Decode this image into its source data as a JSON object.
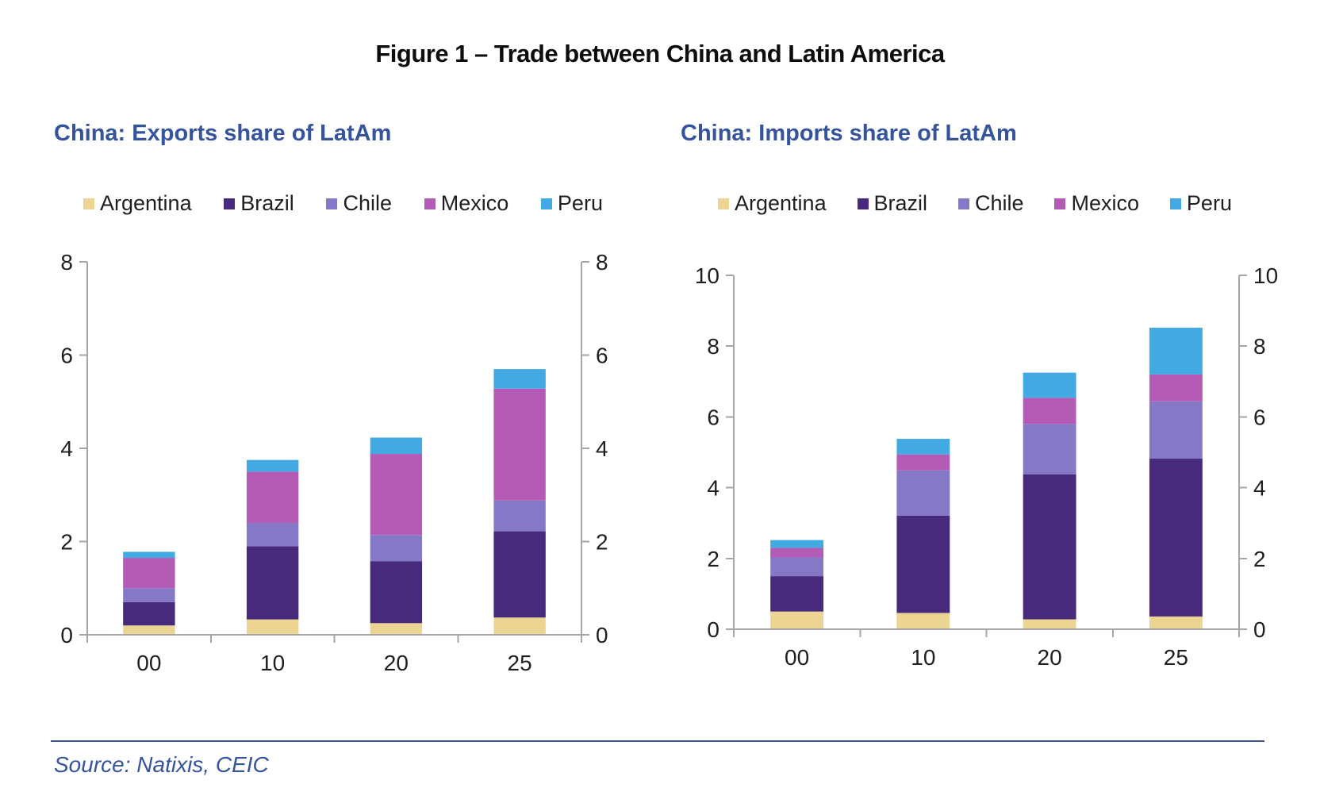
{
  "figure_title": "Figure 1 – Trade between China and Latin America",
  "source_note": "Source: Natixis, CEIC",
  "colors": {
    "argentina": "#ECD592",
    "brazil": "#482A7D",
    "chile": "#8578C6",
    "mexico": "#B35BB5",
    "peru": "#42A9E2",
    "title_blue": "#36549B",
    "axis_line": "#A6A6A6",
    "tick_text": "#1F1F1F",
    "divider": "#3C5496"
  },
  "chart_data": [
    {
      "type": "bar",
      "stacked": true,
      "title": "China: Exports share of LatAm",
      "xlabel": "",
      "ylabel": "",
      "categories": [
        "00",
        "10",
        "20",
        "25"
      ],
      "series": [
        {
          "name": "Argentina",
          "color_key": "argentina",
          "values": [
            0.2,
            0.33,
            0.25,
            0.37
          ]
        },
        {
          "name": "Brazil",
          "color_key": "brazil",
          "values": [
            0.5,
            1.57,
            1.33,
            1.85
          ]
        },
        {
          "name": "Chile",
          "color_key": "chile",
          "values": [
            0.3,
            0.5,
            0.56,
            0.66
          ]
        },
        {
          "name": "Mexico",
          "color_key": "mexico",
          "values": [
            0.65,
            1.1,
            1.74,
            2.4
          ]
        },
        {
          "name": "Peru",
          "color_key": "peru",
          "values": [
            0.13,
            0.25,
            0.35,
            0.42
          ]
        }
      ],
      "stack_totals": [
        1.78,
        3.75,
        4.23,
        5.7
      ],
      "ylim": [
        0,
        8
      ],
      "ytick_step": 2,
      "yticks": [
        0,
        2,
        4,
        6,
        8
      ],
      "grid": false,
      "dual_axis": true,
      "legend_position": "top"
    },
    {
      "type": "bar",
      "stacked": true,
      "title": "China: Imports share of LatAm",
      "xlabel": "",
      "ylabel": "",
      "categories": [
        "00",
        "10",
        "20",
        "25"
      ],
      "series": [
        {
          "name": "Argentina",
          "color_key": "argentina",
          "values": [
            0.5,
            0.46,
            0.28,
            0.36
          ]
        },
        {
          "name": "Brazil",
          "color_key": "brazil",
          "values": [
            1.0,
            2.75,
            4.1,
            4.46
          ]
        },
        {
          "name": "Chile",
          "color_key": "chile",
          "values": [
            0.53,
            1.28,
            1.42,
            1.62
          ]
        },
        {
          "name": "Mexico",
          "color_key": "mexico",
          "values": [
            0.27,
            0.45,
            0.74,
            0.76
          ]
        },
        {
          "name": "Peru",
          "color_key": "peru",
          "values": [
            0.22,
            0.44,
            0.71,
            1.32
          ]
        }
      ],
      "stack_totals": [
        2.52,
        5.38,
        7.25,
        8.52
      ],
      "ylim": [
        0,
        10
      ],
      "ytick_step": 2,
      "yticks": [
        0,
        2,
        4,
        6,
        8,
        10
      ],
      "grid": false,
      "dual_axis": true,
      "legend_position": "top"
    }
  ]
}
